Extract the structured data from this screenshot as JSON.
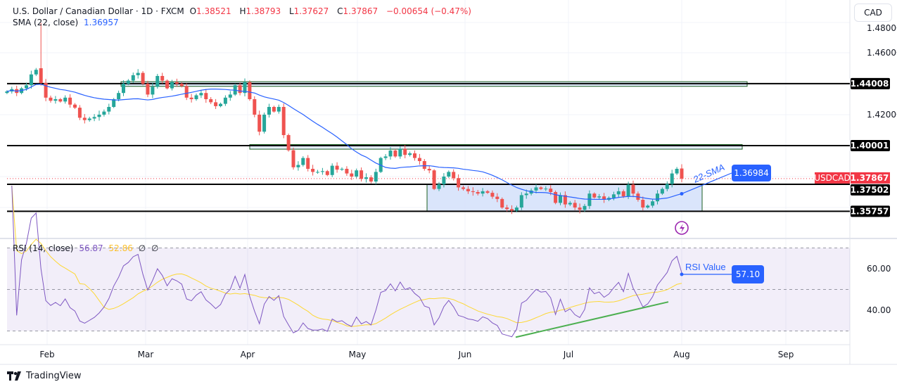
{
  "header": {
    "symbol_title": "U.S. Dollar / Canadian Dollar · 1D · FXCM",
    "open_label": "O",
    "open": "1.38521",
    "high_label": "H",
    "high": "1.38793",
    "low_label": "L",
    "low": "1.37627",
    "close_label": "C",
    "close": "1.37867",
    "change": "−0.00654 (−0.47%)",
    "sma_label": "SMA (22, close)",
    "sma_value": "1.36957"
  },
  "currency_button": "CAD",
  "rsi_legend": {
    "label": "RSI (14, close)",
    "rsi_value": "56.87",
    "ma_value": "52.86",
    "extra1": "∅",
    "extra2": "∅"
  },
  "annotations": {
    "sma_text": "22-SMA",
    "sma_box": "1.36984",
    "rsi_text": "RSI Value",
    "rsi_box": "57.10",
    "symbol_tag": "USDCAD"
  },
  "brand": "TradingView",
  "colors": {
    "up": "#26a69a",
    "down": "#ef5350",
    "sma": "#2962ff",
    "rsi": "#7e57c2",
    "rsi_ma": "#fdd835",
    "zone_border": "#1b5e20",
    "zone_fill": "#d6e2fb",
    "trendline": "#4caf50",
    "price_tag": "#f23645"
  },
  "chart_data": {
    "type": "candlestick",
    "symbol": "USDCAD",
    "price_axis": {
      "ticks": [
        "1.48000",
        "1.46000",
        "1.42000"
      ],
      "range": [
        1.353,
        1.48
      ]
    },
    "time_axis": {
      "labels": [
        "Feb",
        "Mar",
        "Apr",
        "May",
        "Jun",
        "Jul",
        "Aug",
        "Sep"
      ]
    },
    "first_open": 1.434,
    "spike_high": 1.4793,
    "closes": [
      1.435,
      1.4365,
      1.434,
      1.437,
      1.439,
      1.446,
      1.449,
      1.4405,
      1.431,
      1.429,
      1.43,
      1.4285,
      1.431,
      1.4265,
      1.4245,
      1.418,
      1.4165,
      1.4175,
      1.4185,
      1.42,
      1.422,
      1.425,
      1.43,
      1.434,
      1.44,
      1.442,
      1.4455,
      1.447,
      1.44,
      1.433,
      1.438,
      1.445,
      1.442,
      1.437,
      1.441,
      1.44,
      1.4385,
      1.431,
      1.43,
      1.4325,
      1.434,
      1.43,
      1.428,
      1.4255,
      1.427,
      1.431,
      1.433,
      1.439,
      1.434,
      1.441,
      1.43,
      1.42,
      1.409,
      1.42,
      1.425,
      1.422,
      1.425,
      1.4068,
      1.397,
      1.386,
      1.3875,
      1.392,
      1.385,
      1.383,
      1.383,
      1.3835,
      1.381,
      1.387,
      1.3845,
      1.385,
      1.382,
      1.38,
      1.384,
      1.3785,
      1.3795,
      1.3768,
      1.383,
      1.392,
      1.393,
      1.3968,
      1.393,
      1.398,
      1.394,
      1.395,
      1.392,
      1.39,
      1.385,
      1.384,
      1.372,
      1.375,
      1.38,
      1.383,
      1.379,
      1.373,
      1.372,
      1.3705,
      1.37,
      1.369,
      1.3705,
      1.3695,
      1.367,
      1.3655,
      1.36,
      1.359,
      1.358,
      1.36,
      1.368,
      1.369,
      1.371,
      1.373,
      1.372,
      1.3722,
      1.37,
      1.363,
      1.368,
      1.362,
      1.363,
      1.36,
      1.3585,
      1.361,
      1.369,
      1.3665,
      1.3672,
      1.365,
      1.3662,
      1.3685,
      1.3705,
      1.3672,
      1.3748,
      1.369,
      1.365,
      1.36,
      1.3612,
      1.364,
      1.369,
      1.372,
      1.3752,
      1.382,
      1.385,
      1.37867
    ],
    "sma_period": 22,
    "horizontal_levels": [
      {
        "price": 1.44008,
        "label": "1.44008"
      },
      {
        "price": 1.40001,
        "label": "1.40001"
      },
      {
        "price": 1.37502,
        "label": "1.37502"
      },
      {
        "price": 1.35757,
        "label": "1.35757"
      }
    ],
    "current_price": {
      "price": 1.37867,
      "label": "1.37867"
    },
    "zones": [
      {
        "top": 1.4413,
        "bottom": 1.4383
      },
      {
        "top": 1.4007,
        "bottom": 1.3977
      },
      {
        "top": 1.37502,
        "bottom": 1.35757
      }
    ],
    "rsi": {
      "period": 14,
      "ma_period": 14,
      "ticks": [
        "60.00",
        "40.00"
      ],
      "bands": [
        70,
        50,
        30
      ],
      "trendline_points": [
        27,
        44
      ]
    }
  }
}
